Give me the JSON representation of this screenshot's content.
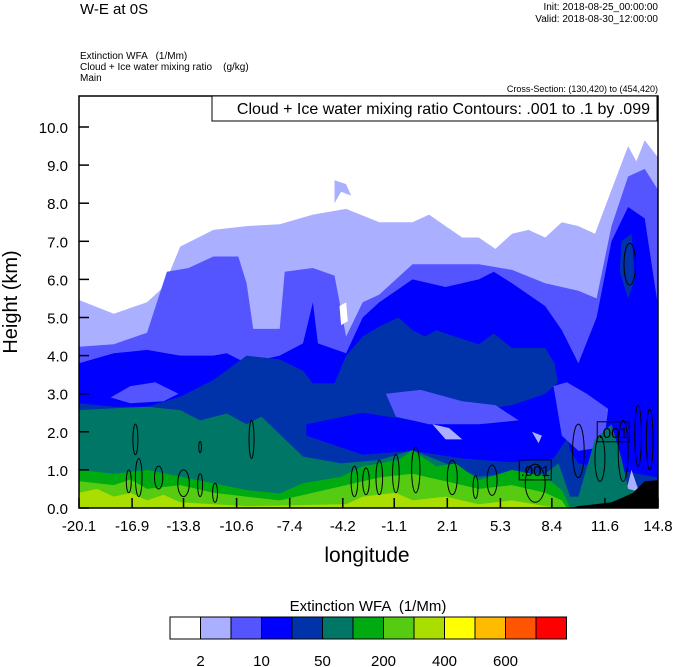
{
  "header": {
    "title": "W-E at 0S",
    "init": "Init: 2018-08-25_00:00:00",
    "valid": "Valid: 2018-08-30_12:00:00",
    "field1": "Extinction WFA   (1/Mm)",
    "field2": "Cloud + Ice water mixing ratio    (g/kg)",
    "field3": "Main",
    "cross_section": "Cross-Section: (130,420) to (454,420)"
  },
  "chart_data": {
    "type": "contour-fill",
    "contour_info": "Cloud + Ice water mixing ratio Contours: .001 to .1 by .099",
    "xlabel": "longitude",
    "ylabel": "Height (km)",
    "xlim": [
      -20.1,
      14.8
    ],
    "ylim": [
      0,
      10.8
    ],
    "xticks": [
      "-20.1",
      "-16.9",
      "-13.8",
      "-10.6",
      "-7.4",
      "-4.2",
      "-1.1",
      "2.1",
      "5.3",
      "8.4",
      "11.6",
      "14.8"
    ],
    "xtick_values": [
      -20.1,
      -16.9,
      -13.8,
      -10.6,
      -7.4,
      -4.2,
      -1.1,
      2.1,
      5.3,
      8.4,
      11.6,
      14.8
    ],
    "yticks": [
      "0.0",
      "1.0",
      "2.0",
      "3.0",
      "4.0",
      "5.0",
      "6.0",
      "7.0",
      "8.0",
      "9.0",
      "10.0"
    ],
    "ytick_values": [
      0,
      1,
      2,
      3,
      4,
      5,
      6,
      7,
      8,
      9,
      10
    ],
    "colorbar": {
      "title": "Extinction WFA  (1/Mm)",
      "colors": [
        "#ffffff",
        "#aab0ff",
        "#5555ff",
        "#0000ff",
        "#0033aa",
        "#007766",
        "#00aa11",
        "#55cc11",
        "#aadd00",
        "#ffff00",
        "#ffbb00",
        "#ff5500",
        "#ff0000"
      ],
      "labels": [
        "2",
        "10",
        "50",
        "200",
        "400",
        "600"
      ],
      "label_boundaries": [
        1,
        3,
        5,
        7,
        9,
        11
      ]
    },
    "layers": [
      {
        "color_index": 1,
        "top": [
          [
            -20.1,
            5.46
          ],
          [
            -18,
            5.1
          ],
          [
            -16,
            5.4
          ],
          [
            -15,
            5.8
          ],
          [
            -14,
            6.86
          ],
          [
            -12,
            7.3
          ],
          [
            -10,
            7.4
          ],
          [
            -8,
            7.45
          ],
          [
            -6,
            7.7
          ],
          [
            -4,
            7.85
          ],
          [
            -2,
            7.5
          ],
          [
            0,
            7.5
          ],
          [
            1,
            7.7
          ],
          [
            2,
            7.4
          ],
          [
            3,
            7.1
          ],
          [
            4,
            7.1
          ],
          [
            5,
            6.8
          ],
          [
            6,
            7.2
          ],
          [
            7,
            7.3
          ],
          [
            8,
            7.1
          ],
          [
            9,
            7.5
          ],
          [
            10,
            7.4
          ],
          [
            11,
            7.2
          ],
          [
            12,
            8.35
          ],
          [
            13,
            9.5
          ],
          [
            13.5,
            9.1
          ],
          [
            14,
            9.65
          ],
          [
            14.8,
            9.2
          ]
        ]
      },
      {
        "color_index": 2,
        "top": [
          [
            -20.1,
            4.23
          ],
          [
            -18,
            4.3
          ],
          [
            -16,
            4.6
          ],
          [
            -14.8,
            6.2
          ],
          [
            -13.5,
            6.3
          ],
          [
            -12,
            6.6
          ],
          [
            -10.5,
            6.6
          ],
          [
            -10,
            5.9
          ],
          [
            -9.6,
            4.7
          ],
          [
            -8,
            4.7
          ],
          [
            -7.7,
            6.2
          ],
          [
            -6,
            6.3
          ],
          [
            -4.7,
            6.1
          ],
          [
            -4,
            4.5
          ],
          [
            -3,
            5.4
          ],
          [
            -2,
            5.6
          ],
          [
            0,
            6.4
          ],
          [
            2,
            6.4
          ],
          [
            4,
            6.4
          ],
          [
            6,
            6.25
          ],
          [
            8,
            5.9
          ],
          [
            10,
            5.7
          ],
          [
            11.1,
            5.5
          ],
          [
            12,
            7.4
          ],
          [
            13,
            8.7
          ],
          [
            14,
            8.9
          ],
          [
            14.8,
            8.35
          ]
        ]
      },
      {
        "color_index": 3,
        "top": [
          [
            -20.1,
            3.8
          ],
          [
            -18,
            4.06
          ],
          [
            -16,
            4.15
          ],
          [
            -14,
            4.0
          ],
          [
            -12,
            4.0
          ],
          [
            -11.2,
            4.06
          ],
          [
            -10,
            3.8
          ],
          [
            -8,
            4.0
          ],
          [
            -6.6,
            4.32
          ],
          [
            -6,
            5.4
          ],
          [
            -5.7,
            4.32
          ],
          [
            -4,
            4.06
          ],
          [
            -3,
            5.0
          ],
          [
            -2,
            5.4
          ],
          [
            0,
            6.0
          ],
          [
            2,
            5.8
          ],
          [
            4,
            6.0
          ],
          [
            4.9,
            6.2
          ],
          [
            6,
            5.9
          ],
          [
            8,
            5.3
          ],
          [
            9,
            4.67
          ],
          [
            10,
            3.8
          ],
          [
            11.1,
            5.0
          ],
          [
            12,
            7.0
          ],
          [
            13,
            7.9
          ],
          [
            14,
            7.6
          ],
          [
            14.8,
            5.3
          ]
        ]
      },
      {
        "color_index": 4,
        "top": [
          [
            -20.1,
            2.75
          ],
          [
            -18,
            2.66
          ],
          [
            -16,
            2.66
          ],
          [
            -14,
            2.92
          ],
          [
            -12,
            3.36
          ],
          [
            -10,
            4.0
          ],
          [
            -8,
            3.9
          ],
          [
            -6.6,
            3.6
          ],
          [
            -6,
            3.27
          ],
          [
            -4.7,
            3.27
          ],
          [
            -4,
            4.0
          ],
          [
            -3,
            4.5
          ],
          [
            -2,
            4.76
          ],
          [
            -0.85,
            5.0
          ],
          [
            0,
            4.67
          ],
          [
            0.76,
            4.5
          ],
          [
            1.44,
            4.67
          ],
          [
            2,
            4.58
          ],
          [
            4,
            4.3
          ],
          [
            4.9,
            4.58
          ],
          [
            6,
            4.2
          ],
          [
            8,
            4.2
          ],
          [
            8.56,
            3.8
          ],
          [
            9.5,
            1.5
          ],
          [
            10,
            1.17
          ],
          [
            14.8,
            0.8
          ]
        ]
      },
      {
        "color_index": 5,
        "top": [
          [
            -20.1,
            2.57
          ],
          [
            -16,
            2.66
          ],
          [
            -14,
            2.57
          ],
          [
            -12.8,
            2.3
          ],
          [
            -11.2,
            2.48
          ],
          [
            -10,
            2.2
          ],
          [
            -9.1,
            2.4
          ],
          [
            -6.6,
            1.35
          ],
          [
            -4.3,
            1.17
          ],
          [
            -2,
            1.26
          ],
          [
            0,
            1.52
          ],
          [
            2,
            1.17
          ],
          [
            4,
            0.82
          ],
          [
            6,
            0.9
          ],
          [
            8,
            0.9
          ],
          [
            8.8,
            1.17
          ],
          [
            9.5,
            0.3
          ],
          [
            10,
            0.3
          ],
          [
            11,
            1.8
          ],
          [
            12,
            2.2
          ],
          [
            12.6,
            1.3
          ],
          [
            13,
            0.5
          ],
          [
            14.8,
            0.3
          ]
        ]
      },
      {
        "color_index": 6,
        "top": [
          [
            -20.1,
            1.0
          ],
          [
            -18,
            0.9
          ],
          [
            -16,
            1.0
          ],
          [
            -14,
            0.82
          ],
          [
            -12,
            0.65
          ],
          [
            -10,
            0.47
          ],
          [
            -8,
            0.38
          ],
          [
            -6.6,
            0.65
          ],
          [
            -4.3,
            0.82
          ],
          [
            -3,
            1.09
          ],
          [
            -0.85,
            1.26
          ],
          [
            0,
            1.52
          ],
          [
            1.44,
            1.09
          ],
          [
            2.6,
            1.17
          ],
          [
            4,
            0.73
          ],
          [
            6,
            1.0
          ],
          [
            8,
            0.82
          ],
          [
            9,
            0.47
          ],
          [
            9.5,
            0
          ]
        ]
      },
      {
        "color_index": 7,
        "top": [
          [
            -20.1,
            0.7
          ],
          [
            -18,
            0.6
          ],
          [
            -17,
            0.75
          ],
          [
            -16,
            0.5
          ],
          [
            -14,
            0.6
          ],
          [
            -12,
            0.4
          ],
          [
            -10,
            0.3
          ],
          [
            -8,
            0.2
          ],
          [
            -6,
            0.4
          ],
          [
            -4,
            0.6
          ],
          [
            -2,
            0.8
          ],
          [
            0,
            0.9
          ],
          [
            2,
            0.7
          ],
          [
            4,
            0.5
          ],
          [
            6,
            0.6
          ],
          [
            8,
            0.4
          ],
          [
            9,
            0.2
          ],
          [
            9.3,
            0
          ]
        ]
      },
      {
        "color_index": 8,
        "top": [
          [
            -20.1,
            0.4
          ],
          [
            -19,
            0.5
          ],
          [
            -18,
            0.3
          ],
          [
            -17,
            0.4
          ],
          [
            -16,
            0.2
          ],
          [
            -15,
            0.35
          ],
          [
            -14,
            0.15
          ],
          [
            -12,
            0.1
          ],
          [
            -10,
            0.05
          ],
          [
            -4,
            0.1
          ],
          [
            -3,
            0.3
          ],
          [
            -1,
            0.4
          ],
          [
            0,
            0.2
          ],
          [
            2,
            0.3
          ],
          [
            4,
            0.1
          ],
          [
            6,
            0.2
          ],
          [
            8,
            0.05
          ],
          [
            9,
            0
          ]
        ]
      }
    ],
    "patches": [
      {
        "color_index": 2,
        "points": [
          [
            -18.2,
            2.9
          ],
          [
            -17,
            3.2
          ],
          [
            -15.5,
            3.3
          ],
          [
            -14.1,
            3.0
          ],
          [
            -15,
            2.8
          ],
          [
            -17,
            2.75
          ]
        ]
      },
      {
        "color_index": 3,
        "points": [
          [
            -6.4,
            2.2
          ],
          [
            -3,
            2.5
          ],
          [
            0,
            2.3
          ],
          [
            3,
            2.5
          ],
          [
            6,
            2.7
          ],
          [
            8,
            3.0
          ],
          [
            9.3,
            3.5
          ],
          [
            9.6,
            2.0
          ],
          [
            8.5,
            1.3
          ],
          [
            6,
            1.2
          ],
          [
            3,
            1.3
          ],
          [
            0,
            1.5
          ],
          [
            -3,
            1.4
          ],
          [
            -6.4,
            1.9
          ]
        ]
      },
      {
        "color_index": 2,
        "points": [
          [
            -1.6,
            3.0
          ],
          [
            0.5,
            3.1
          ],
          [
            3,
            2.8
          ],
          [
            5,
            2.7
          ],
          [
            6.4,
            2.3
          ],
          [
            4,
            2.2
          ],
          [
            1,
            2.2
          ],
          [
            -1,
            2.4
          ]
        ]
      },
      {
        "color_index": 2,
        "points": [
          [
            8.5,
            3.2
          ],
          [
            9.3,
            3.3
          ],
          [
            10.5,
            3.0
          ],
          [
            11.8,
            2.6
          ],
          [
            11.5,
            1.6
          ],
          [
            10,
            1.5
          ],
          [
            9,
            1.9
          ]
        ]
      },
      {
        "color_index": 1,
        "points": [
          [
            1.2,
            2.2
          ],
          [
            2.2,
            2.1
          ],
          [
            3.0,
            1.8
          ],
          [
            2.0,
            1.8
          ]
        ]
      },
      {
        "color_index": 1,
        "points": [
          [
            7.2,
            2.0
          ],
          [
            7.8,
            1.9
          ],
          [
            7.6,
            1.7
          ]
        ]
      },
      {
        "color_index": 1,
        "points": [
          [
            12.8,
            0.3
          ],
          [
            13.2,
            1.0
          ],
          [
            13.6,
            0.5
          ]
        ]
      },
      {
        "color_index": 1,
        "points": [
          [
            -4.7,
            8.6
          ],
          [
            -4.0,
            8.5
          ],
          [
            -3.7,
            8.2
          ],
          [
            -4.3,
            8.3
          ],
          [
            -4.7,
            8.0
          ]
        ]
      },
      {
        "color_index": 0,
        "points": [
          [
            -4.4,
            5.3
          ],
          [
            -4.0,
            5.4
          ],
          [
            -3.9,
            4.9
          ],
          [
            -4.3,
            4.8
          ]
        ]
      },
      {
        "color_index": 4,
        "points": [
          [
            12.6,
            7.0
          ],
          [
            13.2,
            7.2
          ],
          [
            13.4,
            6.0
          ],
          [
            13.0,
            5.5
          ],
          [
            12.5,
            6.2
          ]
        ]
      }
    ],
    "terrain": [
      [
        9.5,
        0
      ],
      [
        10,
        0.05
      ],
      [
        11,
        0.1
      ],
      [
        12,
        0.15
      ],
      [
        12.8,
        0.3
      ],
      [
        13.3,
        0.4
      ],
      [
        14,
        0.7
      ],
      [
        14.8,
        0.73
      ],
      [
        14.8,
        0
      ]
    ],
    "contours": [
      [
        -16.7,
        1.8,
        0.15,
        0.4
      ],
      [
        -16.5,
        0.8,
        0.2,
        0.5
      ],
      [
        -17.1,
        0.7,
        0.15,
        0.3
      ],
      [
        -15.3,
        0.8,
        0.25,
        0.3
      ],
      [
        -13.8,
        0.65,
        0.35,
        0.35
      ],
      [
        -12.8,
        0.6,
        0.15,
        0.3
      ],
      [
        -11.9,
        0.4,
        0.15,
        0.25
      ],
      [
        -9.7,
        1.8,
        0.15,
        0.5
      ],
      [
        -12.8,
        1.6,
        0.08,
        0.15
      ],
      [
        -3.5,
        0.7,
        0.2,
        0.4
      ],
      [
        -2.8,
        0.7,
        0.2,
        0.35
      ],
      [
        -2.0,
        0.8,
        0.2,
        0.45
      ],
      [
        -1.0,
        0.9,
        0.2,
        0.5
      ],
      [
        0.2,
        1.0,
        0.25,
        0.6
      ],
      [
        2.4,
        0.8,
        0.3,
        0.45
      ],
      [
        3.8,
        0.55,
        0.15,
        0.3
      ],
      [
        4.8,
        0.73,
        0.3,
        0.4
      ],
      [
        7.4,
        0.65,
        0.6,
        0.5
      ],
      [
        10.0,
        1.5,
        0.35,
        0.7
      ],
      [
        11.3,
        1.3,
        0.3,
        0.6
      ],
      [
        12.7,
        1.5,
        0.3,
        0.8
      ],
      [
        13.6,
        1.9,
        0.2,
        0.8
      ],
      [
        14.3,
        1.8,
        0.2,
        0.8
      ],
      [
        13.1,
        6.4,
        0.35,
        0.55
      ]
    ],
    "contour_labels": [
      {
        "text": ".001",
        "lon": 7.4,
        "h": 1.0
      },
      {
        "text": ".001",
        "lon": 12.1,
        "h": 2.0
      }
    ]
  }
}
